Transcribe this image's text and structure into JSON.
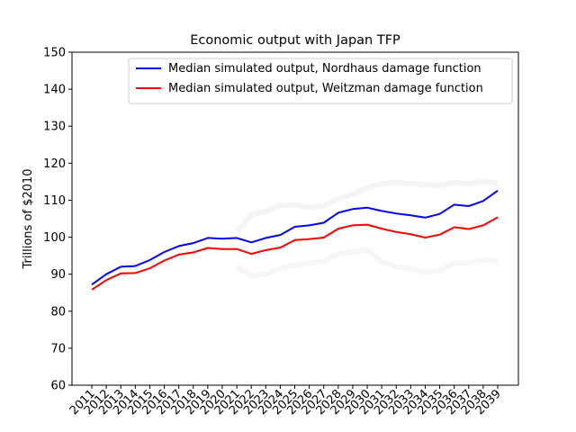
{
  "chart_data": {
    "type": "line",
    "title": "Economic output with Japan TFP",
    "xlabel": "",
    "ylabel": "Trillions of $2010",
    "ylim": [
      60,
      150
    ],
    "yticks": [
      60,
      70,
      80,
      90,
      100,
      110,
      120,
      130,
      140,
      150
    ],
    "x": [
      "2011",
      "2012",
      "2013",
      "2014",
      "2015",
      "2016",
      "2017",
      "2018",
      "2019",
      "2020",
      "2021",
      "2022",
      "2023",
      "2024",
      "2025",
      "2026",
      "2027",
      "2028",
      "2029",
      "2030",
      "2031",
      "2032",
      "2033",
      "2034",
      "2035",
      "2036",
      "2037",
      "2038",
      "2039"
    ],
    "legend_position": "top-right",
    "grid": false,
    "series": [
      {
        "name": "Median simulated output, Nordhaus damage function",
        "color": "#0000ff",
        "values": [
          87.2,
          90.0,
          92.0,
          92.2,
          93.8,
          96.0,
          97.6,
          98.4,
          99.8,
          99.6,
          99.8,
          98.6,
          99.8,
          100.6,
          102.8,
          103.2,
          103.9,
          106.6,
          107.6,
          108.0,
          107.1,
          106.4,
          105.9,
          105.3,
          106.3,
          108.8,
          108.4,
          109.8,
          112.6
        ]
      },
      {
        "name": "Median simulated output, Weitzman damage function",
        "color": "#ff0000",
        "values": [
          85.8,
          88.4,
          90.2,
          90.3,
          91.6,
          93.7,
          95.3,
          95.9,
          97.1,
          96.8,
          96.8,
          95.5,
          96.5,
          97.2,
          99.2,
          99.5,
          99.9,
          102.3,
          103.2,
          103.4,
          102.3,
          101.4,
          100.8,
          99.9,
          100.7,
          102.7,
          102.2,
          103.2,
          105.4
        ]
      }
    ],
    "background_bands": [
      {
        "color": "#f4f4f4",
        "upper": [
          null,
          null,
          null,
          null,
          null,
          null,
          null,
          null,
          null,
          null,
          101.5,
          106.0,
          107.0,
          108.5,
          108.8,
          108.0,
          108.5,
          110.5,
          111.5,
          113.5,
          114.5,
          114.8,
          114.5,
          114.2,
          114.0,
          114.8,
          114.5,
          115.0,
          114.5
        ]
      },
      {
        "color": "#f6f6f6",
        "lower": [
          null,
          null,
          null,
          null,
          null,
          null,
          null,
          null,
          null,
          null,
          92.0,
          89.5,
          90.0,
          91.5,
          92.5,
          93.0,
          93.5,
          95.5,
          96.0,
          96.5,
          93.5,
          92.0,
          91.5,
          90.5,
          91.0,
          93.0,
          93.0,
          94.0,
          93.5
        ]
      }
    ]
  }
}
